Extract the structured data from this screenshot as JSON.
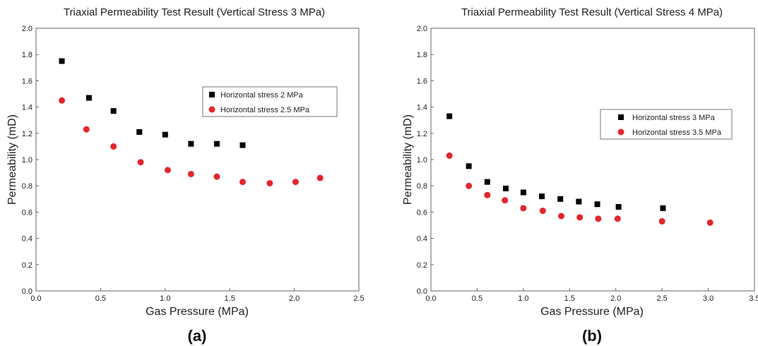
{
  "colors": {
    "black_series": "#000000",
    "red_series": "#e3262c",
    "axis": "#666666"
  },
  "chart_data": [
    {
      "type": "scatter",
      "panel_label": "(a)",
      "title": "Triaxial Permeability Test Result (Vertical Stress 3 MPa)",
      "xlabel": "Gas Pressure (MPa)",
      "ylabel": "Permeability (mD)",
      "xlim": [
        0,
        2.5
      ],
      "ylim": [
        0,
        2.0
      ],
      "xticks": [
        0,
        0.5,
        1.0,
        1.5,
        2.0,
        2.5
      ],
      "xtick_labels": [
        "0.0",
        "0.5",
        "1.0",
        "1.5",
        "2.0",
        "2.5"
      ],
      "yticks": [
        0,
        0.2,
        0.4,
        0.6,
        0.8,
        1.0,
        1.2,
        1.4,
        1.6,
        1.8,
        2.0
      ],
      "ytick_labels": [
        "0.0",
        "0.2",
        "0.4",
        "0.6",
        "0.8",
        "1.0",
        "1.2",
        "1.4",
        "1.6",
        "1.8",
        "2.0"
      ],
      "grid": false,
      "legend_position": "right",
      "series": [
        {
          "name": "Horizontal stress 2 MPa",
          "marker": "square",
          "color": "#000000",
          "x": [
            0.2,
            0.41,
            0.6,
            0.8,
            1.0,
            1.2,
            1.4,
            1.6
          ],
          "y": [
            1.75,
            1.47,
            1.37,
            1.21,
            1.19,
            1.12,
            1.12,
            1.11
          ]
        },
        {
          "name": "Horizontal stress 2.5 MPa",
          "marker": "circle",
          "color": "#e3262c",
          "x": [
            0.2,
            0.39,
            0.6,
            0.81,
            1.02,
            1.2,
            1.4,
            1.6,
            1.81,
            2.01,
            2.2
          ],
          "y": [
            1.45,
            1.23,
            1.1,
            0.98,
            0.92,
            0.89,
            0.87,
            0.83,
            0.82,
            0.83,
            0.86
          ]
        }
      ]
    },
    {
      "type": "scatter",
      "panel_label": "(b)",
      "title": "Triaxial Permeability Test Result (Vertical Stress 4 MPa)",
      "xlabel": "Gas Pressure (MPa)",
      "ylabel": "Permeability (mD)",
      "xlim": [
        0,
        3.5
      ],
      "ylim": [
        0,
        2.0
      ],
      "xticks": [
        0,
        0.5,
        1.0,
        1.5,
        2.0,
        2.5,
        3.0,
        3.5
      ],
      "xtick_labels": [
        "0.0",
        "0.5",
        "1.0",
        "1.5",
        "2.0",
        "2.5",
        "3.0",
        "3.5"
      ],
      "yticks": [
        0,
        0.2,
        0.4,
        0.6,
        0.8,
        1.0,
        1.2,
        1.4,
        1.6,
        1.8,
        2.0
      ],
      "ytick_labels": [
        "0.0",
        "0.2",
        "0.4",
        "0.6",
        "0.8",
        "1.0",
        "1.2",
        "1.4",
        "1.6",
        "1.8",
        "2.0"
      ],
      "grid": false,
      "legend_position": "right",
      "series": [
        {
          "name": "Horizontal stress 3 MPa",
          "marker": "square",
          "color": "#000000",
          "x": [
            0.2,
            0.41,
            0.61,
            0.81,
            1.0,
            1.2,
            1.4,
            1.6,
            1.8,
            2.03,
            2.51
          ],
          "y": [
            1.33,
            0.95,
            0.83,
            0.78,
            0.75,
            0.72,
            0.7,
            0.68,
            0.66,
            0.64,
            0.63
          ]
        },
        {
          "name": "Horizontal stress 3.5 MPa",
          "marker": "circle",
          "color": "#e3262c",
          "x": [
            0.2,
            0.41,
            0.61,
            0.8,
            1.0,
            1.21,
            1.41,
            1.61,
            1.81,
            2.02,
            2.5,
            3.02
          ],
          "y": [
            1.03,
            0.8,
            0.73,
            0.69,
            0.63,
            0.61,
            0.57,
            0.56,
            0.55,
            0.55,
            0.53,
            0.52
          ]
        }
      ]
    }
  ]
}
